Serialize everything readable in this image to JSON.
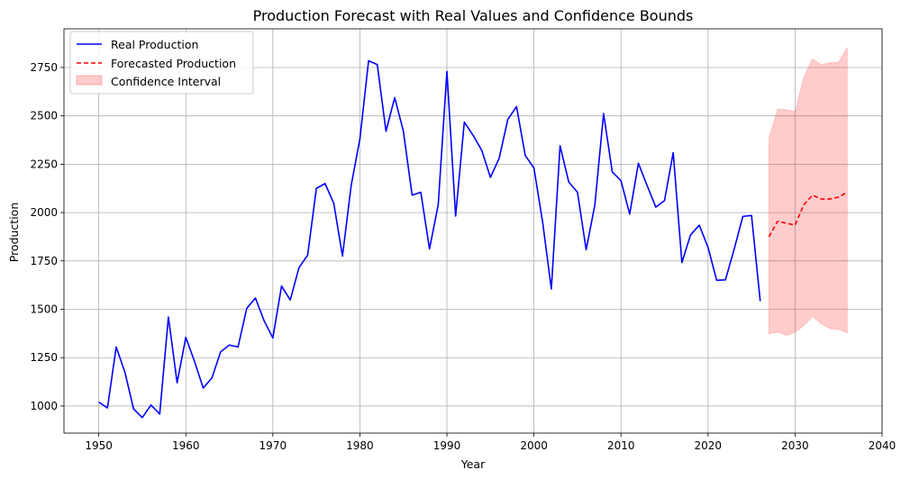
{
  "chart_data": {
    "type": "line",
    "title": "Production Forecast with Real Values and Confidence Bounds",
    "xlabel": "Year",
    "ylabel": "Production",
    "xlim": [
      1946,
      2040
    ],
    "ylim": [
      860,
      2950
    ],
    "xticks": [
      1950,
      1960,
      1970,
      1980,
      1990,
      2000,
      2010,
      2020,
      2030,
      2040
    ],
    "yticks": [
      1000,
      1250,
      1500,
      1750,
      2000,
      2250,
      2500,
      2750
    ],
    "grid": true,
    "legend_position": "top-left",
    "legend": [
      "Real Production",
      "Forecasted Production",
      "Confidence Interval"
    ],
    "series": [
      {
        "name": "Real Production",
        "style": "solid",
        "color": "#0000ff",
        "x": [
          1950,
          1951,
          1952,
          1953,
          1954,
          1955,
          1956,
          1957,
          1958,
          1959,
          1960,
          1961,
          1962,
          1963,
          1964,
          1965,
          1966,
          1967,
          1968,
          1969,
          1970,
          1971,
          1972,
          1973,
          1974,
          1975,
          1976,
          1977,
          1978,
          1979,
          1980,
          1981,
          1982,
          1983,
          1984,
          1985,
          1986,
          1987,
          1988,
          1989,
          1990,
          1991,
          1992,
          1993,
          1994,
          1995,
          1996,
          1997,
          1998,
          1999,
          2000,
          2001,
          2002,
          2003,
          2004,
          2005,
          2006,
          2007,
          2008,
          2009,
          2010,
          2011,
          2012,
          2013,
          2014,
          2015,
          2016,
          2017,
          2018,
          2019,
          2020,
          2021,
          2022,
          2023,
          2024,
          2025,
          2026
        ],
        "y": [
          1020,
          990,
          1305,
          1175,
          985,
          940,
          1005,
          958,
          1460,
          1120,
          1355,
          1230,
          1093,
          1145,
          1280,
          1315,
          1305,
          1505,
          1558,
          1440,
          1352,
          1620,
          1548,
          1715,
          1780,
          2125,
          2150,
          2048,
          1775,
          2140,
          2380,
          2785,
          2765,
          2420,
          2595,
          2420,
          2090,
          2105,
          1812,
          2040,
          2730,
          1982,
          2468,
          2400,
          2322,
          2182,
          2280,
          2482,
          2548,
          2295,
          2230,
          1950,
          1605,
          2345,
          2158,
          2105,
          1808,
          2040,
          2512,
          2210,
          2165,
          1992,
          2255,
          2140,
          2028,
          2062,
          2310,
          1742,
          1885,
          1935,
          1820,
          1650,
          1652,
          1810,
          1980,
          1985,
          1542
        ]
      },
      {
        "name": "Forecasted Production",
        "style": "dashed",
        "color": "#ff0000",
        "x": [
          2027,
          2028,
          2029,
          2030,
          2031,
          2032,
          2033,
          2034,
          2035,
          2036
        ],
        "y": [
          1875,
          1955,
          1945,
          1935,
          2040,
          2090,
          2070,
          2070,
          2080,
          2105
        ]
      }
    ],
    "confidence_interval": {
      "name": "Confidence Interval",
      "color": "#ff0000",
      "x": [
        2027,
        2028,
        2029,
        2030,
        2031,
        2032,
        2033,
        2034,
        2035,
        2036
      ],
      "lower": [
        1372,
        1382,
        1365,
        1380,
        1415,
        1462,
        1425,
        1400,
        1395,
        1378
      ],
      "upper": [
        2385,
        2535,
        2532,
        2522,
        2700,
        2795,
        2765,
        2775,
        2778,
        2852
      ]
    }
  }
}
